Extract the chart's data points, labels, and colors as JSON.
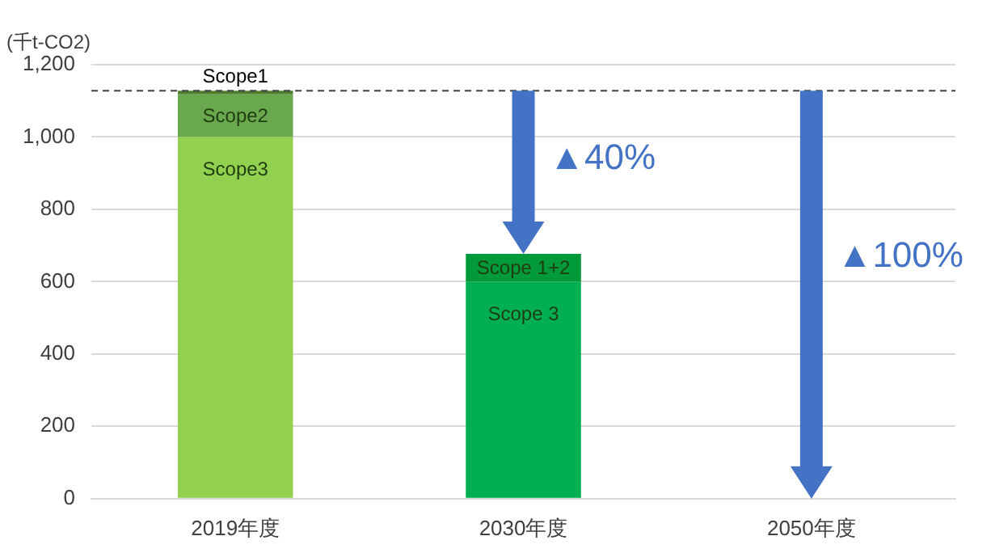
{
  "chart_data": {
    "type": "bar",
    "stacked": true,
    "ylabel": "(千t-CO2)",
    "categories": [
      "2019年度",
      "2030年度",
      "2050年度"
    ],
    "series": [
      {
        "name": "Scope3",
        "color": "#92d050",
        "values": [
          1000,
          null,
          null
        ]
      },
      {
        "name": "Scope2",
        "color": "#6aa84f",
        "values": [
          118,
          null,
          null
        ]
      },
      {
        "name": "Scope1",
        "color": "#4e7f2f",
        "values": [
          10,
          null,
          null
        ]
      },
      {
        "name": "Scope 3",
        "color": "#00b050",
        "values": [
          null,
          600,
          null
        ]
      },
      {
        "name": "Scope 1+2",
        "color": "#009a3a",
        "values": [
          null,
          77,
          null
        ]
      }
    ],
    "ylim": [
      0,
      1200
    ],
    "yticks": [
      0,
      200,
      400,
      600,
      800,
      {
        "value": 1000,
        "label": "1,000"
      },
      {
        "value": 1200,
        "label": "1,200"
      }
    ],
    "grid": "y",
    "legend": false,
    "ref_lines": [
      {
        "axis": "y",
        "value": 1128,
        "line_style": "dashed",
        "color": "#404040"
      }
    ],
    "annotations": [
      "▲40%",
      "▲100%"
    ]
  }
}
